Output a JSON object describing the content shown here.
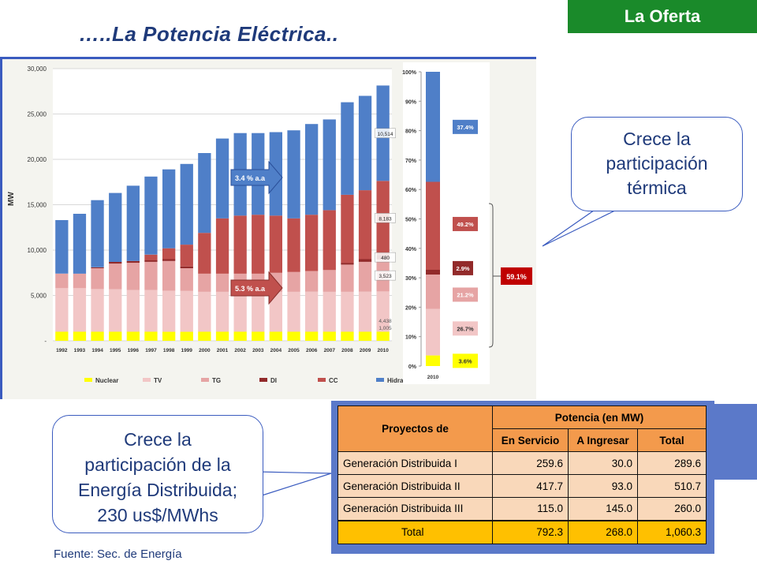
{
  "header": {
    "tag": "La Oferta",
    "title": "…..La Potencia Eléctrica.."
  },
  "colors": {
    "Nuclear": "#ffff00",
    "TV": "#f2c6c6",
    "TG": "#e6a4a4",
    "DI": "#922a2a",
    "CC": "#c0504d",
    "Hidraulica": "#4f7fc8",
    "tag_bg": "#1a8a2a",
    "title": "#1f3a7a"
  },
  "chart_data": [
    {
      "type": "bar",
      "stacked": true,
      "categories": [
        "1992",
        "1993",
        "1994",
        "1995",
        "1996",
        "1997",
        "1998",
        "1999",
        "2000",
        "2001",
        "2002",
        "2003",
        "2004",
        "2005",
        "2006",
        "2007",
        "2008",
        "2009",
        "2010"
      ],
      "ylabel": "MW",
      "ylim": [
        0,
        30000
      ],
      "yticks": [
        "-",
        "5,000",
        "10,000",
        "15,000",
        "20,000",
        "25,000",
        "30,000"
      ],
      "grid": true,
      "legend": "bottom",
      "series": [
        {
          "name": "Nuclear",
          "values": [
            1000,
            1000,
            1000,
            1000,
            1000,
            1000,
            1000,
            1000,
            1000,
            1000,
            1000,
            1000,
            1000,
            1000,
            1000,
            1000,
            1000,
            1000,
            1005
          ]
        },
        {
          "name": "TV",
          "values": [
            4800,
            4800,
            4700,
            4700,
            4600,
            4600,
            4500,
            4500,
            4400,
            4400,
            4400,
            4400,
            4400,
            4400,
            4400,
            4400,
            4400,
            4400,
            4438
          ]
        },
        {
          "name": "TG",
          "values": [
            1600,
            1600,
            2300,
            2800,
            3000,
            3100,
            3300,
            2500,
            2000,
            2000,
            2000,
            2000,
            2100,
            2200,
            2300,
            2400,
            3000,
            3300,
            3523
          ]
        },
        {
          "name": "DI",
          "values": [
            0,
            0,
            100,
            200,
            200,
            200,
            200,
            200,
            0,
            0,
            0,
            0,
            0,
            0,
            0,
            0,
            200,
            300,
            480
          ]
        },
        {
          "name": "CC",
          "values": [
            0,
            0,
            0,
            0,
            0,
            600,
            1200,
            2400,
            4500,
            6100,
            6400,
            6500,
            6300,
            5900,
            6200,
            6600,
            7500,
            7600,
            8183
          ]
        },
        {
          "name": "Hidraulica",
          "values": [
            5900,
            6600,
            7400,
            7600,
            8300,
            8600,
            8700,
            8900,
            8800,
            8800,
            9100,
            9000,
            9200,
            9700,
            10000,
            10000,
            10200,
            10400,
            10514
          ]
        }
      ],
      "data_labels": [
        "1,005",
        "4,438",
        "3,523",
        "480",
        "8,183",
        "10,514"
      ],
      "annotations": [
        "3.4 % a.a",
        "5.3 % a.a"
      ]
    },
    {
      "type": "bar",
      "stacked": true,
      "categories": [
        "2010"
      ],
      "ylim": [
        0,
        100
      ],
      "yticks": [
        "0%",
        "10%",
        "20%",
        "30%",
        "40%",
        "50%",
        "60%",
        "70%",
        "80%",
        "90%",
        "100%"
      ],
      "series": [
        {
          "name": "Nuclear",
          "values": [
            3.6
          ]
        },
        {
          "name": "TV",
          "values": [
            15.8
          ]
        },
        {
          "name": "TG",
          "values": [
            11.7
          ]
        },
        {
          "name": "DI",
          "values": [
            1.6
          ]
        },
        {
          "name": "CC",
          "values": [
            29.9
          ]
        },
        {
          "name": "Hidraulica",
          "values": [
            37.4
          ]
        }
      ],
      "data_labels": [
        "37.4%",
        "49.2%",
        "2.9%",
        "21.2%",
        "26.7%",
        "3.6%"
      ],
      "bracket_label": "59.1%"
    }
  ],
  "callouts": {
    "thermal": [
      "Crece la",
      "participación",
      "térmica"
    ],
    "distributed": [
      "Crece la",
      "participación de la",
      "Energía Distribuida;",
      "230 us$/MWhs"
    ]
  },
  "source": "Fuente: Sec. de Energía",
  "table": {
    "header_left": "Proyectos de",
    "header_group": "Potencia (en MW)",
    "columns": [
      "En Servicio",
      "A Ingresar",
      "Total"
    ],
    "rows": [
      {
        "name": "Generación Distribuida I",
        "values": [
          "259.6",
          "30.0",
          "289.6"
        ]
      },
      {
        "name": "Generación Distribuida II",
        "values": [
          "417.7",
          "93.0",
          "510.7"
        ]
      },
      {
        "name": "Generación Distribuida III",
        "values": [
          "115.0",
          "145.0",
          "260.0"
        ]
      }
    ],
    "total": {
      "name": "Total",
      "values": [
        "792.3",
        "268.0",
        "1,060.3"
      ]
    }
  }
}
